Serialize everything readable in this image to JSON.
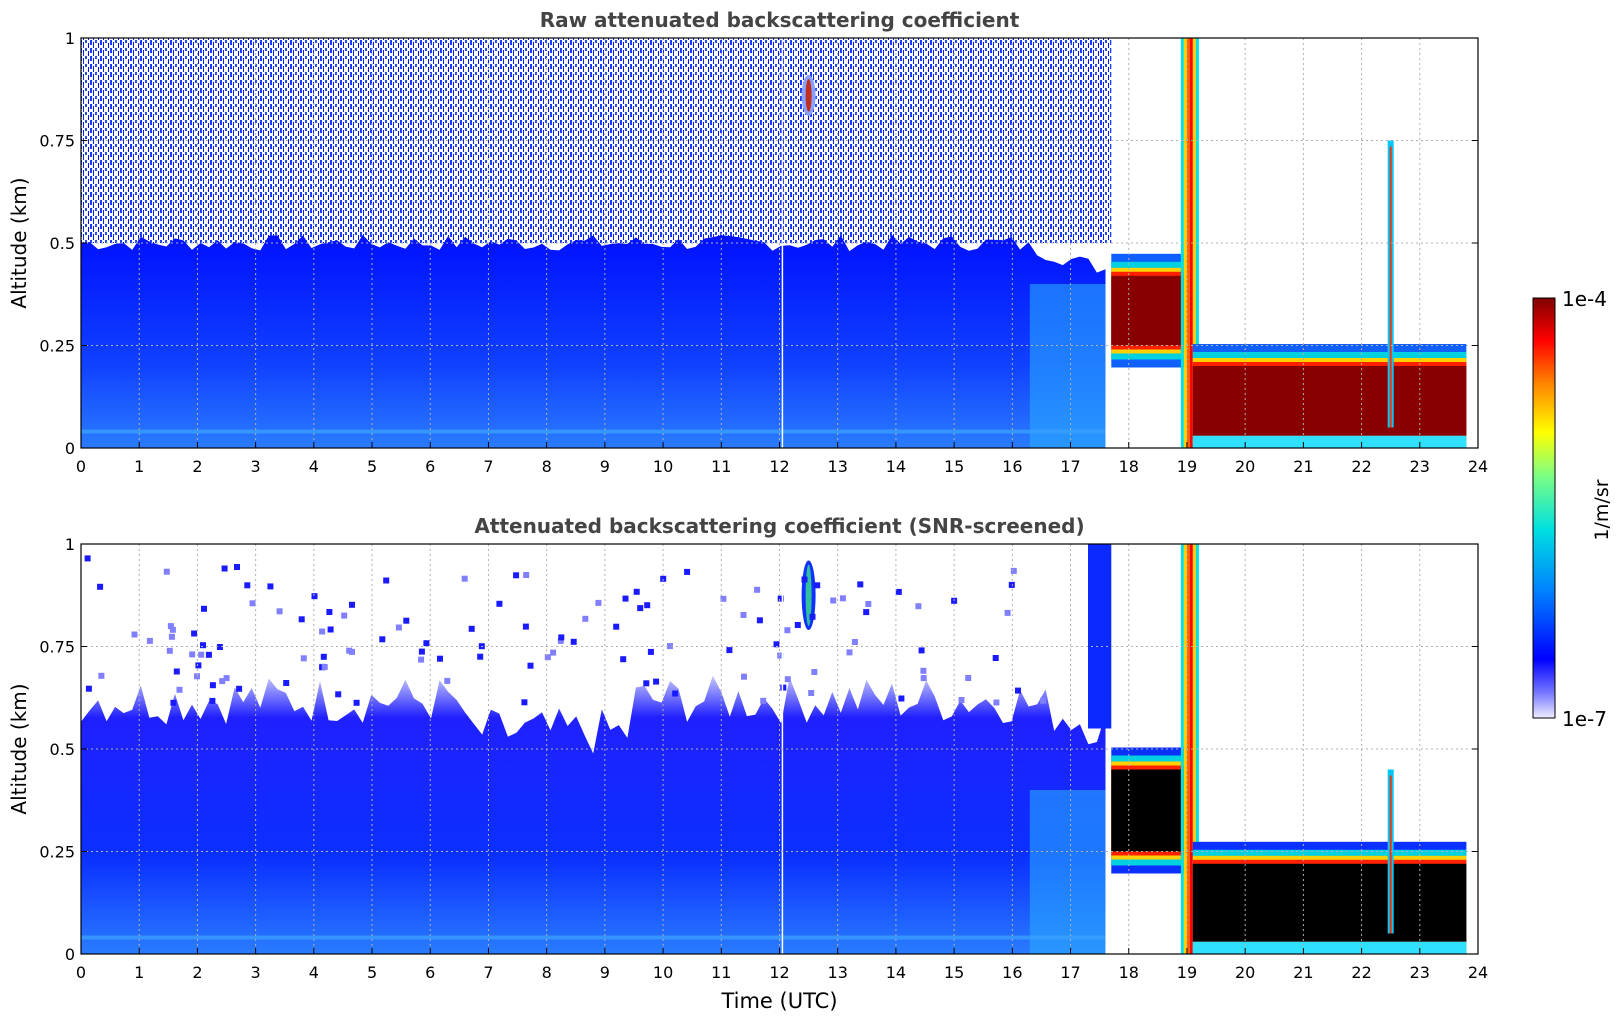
{
  "chart_data": [
    {
      "type": "heatmap",
      "title": "Raw attenuated backscattering coefficient",
      "xlabel": "",
      "ylabel": "Altitude (km)",
      "xlim": [
        0,
        24
      ],
      "ylim": [
        0,
        1
      ],
      "x_ticks": [
        "0",
        "1",
        "2",
        "3",
        "4",
        "5",
        "6",
        "7",
        "8",
        "9",
        "10",
        "11",
        "12",
        "13",
        "14",
        "15",
        "16",
        "17",
        "18",
        "19",
        "20",
        "21",
        "22",
        "23",
        "24"
      ],
      "y_ticks": [
        "0",
        "0.25",
        "0.5",
        "0.75",
        "1"
      ],
      "grid": true,
      "screened": false,
      "features": [
        {
          "kind": "boundary-layer",
          "time_start": 0,
          "time_end": 17.6,
          "top_km": 0.5
        },
        {
          "kind": "noisy-upper",
          "time_start": 0,
          "time_end": 17.7,
          "bottom_km": 0.5,
          "top_km": 1.0
        },
        {
          "kind": "dense-layer",
          "time_start": 17.7,
          "time_end": 19.0,
          "bottom_km": 0.25,
          "top_km": 0.42
        },
        {
          "kind": "vertical-plume",
          "time": 19.05,
          "bottom_km": 0.0,
          "top_km": 1.0
        },
        {
          "kind": "dense-layer",
          "time_start": 19.1,
          "time_end": 23.8,
          "bottom_km": 0.03,
          "top_km": 0.2
        },
        {
          "kind": "spike",
          "time": 22.5,
          "bottom_km": 0.05,
          "top_km": 0.75
        },
        {
          "kind": "small-plume",
          "time": 12.5,
          "bottom_km": 0.82,
          "top_km": 0.9
        }
      ]
    },
    {
      "type": "heatmap",
      "title": "Attenuated backscattering coefficient (SNR-screened)",
      "xlabel": "Time (UTC)",
      "ylabel": "Altitude (km)",
      "xlim": [
        0,
        24
      ],
      "ylim": [
        0,
        1
      ],
      "x_ticks": [
        "0",
        "1",
        "2",
        "3",
        "4",
        "5",
        "6",
        "7",
        "8",
        "9",
        "10",
        "11",
        "12",
        "13",
        "14",
        "15",
        "16",
        "17",
        "18",
        "19",
        "20",
        "21",
        "22",
        "23",
        "24"
      ],
      "y_ticks": [
        "0",
        "0.25",
        "0.5",
        "0.75",
        "1"
      ],
      "grid": true,
      "screened": true,
      "features": [
        {
          "kind": "boundary-layer",
          "time_start": 0,
          "time_end": 17.6,
          "top_km": 0.62
        },
        {
          "kind": "dense-layer",
          "time_start": 17.7,
          "time_end": 19.0,
          "bottom_km": 0.25,
          "top_km": 0.45
        },
        {
          "kind": "vertical-plume",
          "time": 19.05,
          "bottom_km": 0.0,
          "top_km": 1.0
        },
        {
          "kind": "dense-layer",
          "time_start": 19.1,
          "time_end": 23.8,
          "bottom_km": 0.03,
          "top_km": 0.22
        },
        {
          "kind": "spike",
          "time": 22.5,
          "bottom_km": 0.05,
          "top_km": 0.45
        },
        {
          "kind": "small-plume",
          "time": 12.5,
          "bottom_km": 0.8,
          "top_km": 0.95
        }
      ]
    }
  ],
  "colorbar": {
    "label": "1/m/sr",
    "max_label": "1e-4",
    "min_label": "1e-7",
    "colors": [
      "#eeeeff",
      "#7777ff",
      "#0000ff",
      "#0080ff",
      "#00e0e0",
      "#80ff80",
      "#ffff00",
      "#ff8000",
      "#ff0000",
      "#800000"
    ]
  }
}
